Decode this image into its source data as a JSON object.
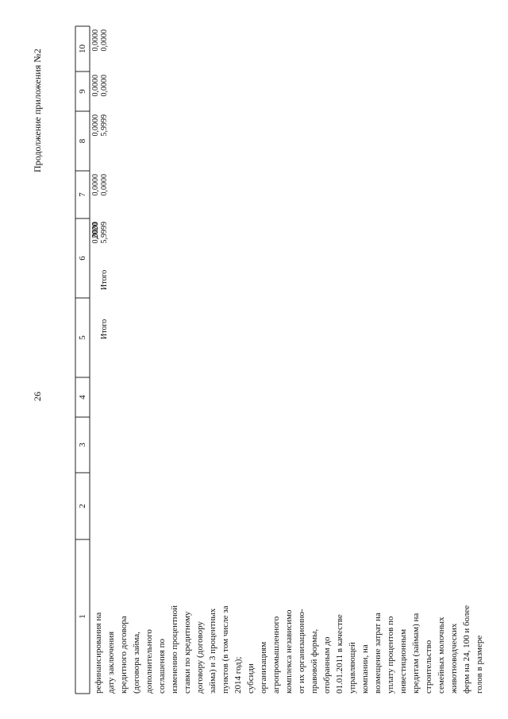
{
  "header": {
    "page_number": "26",
    "appendix_title": "Продолжение приложения №2"
  },
  "table": {
    "col_numbers": [
      "1",
      "2",
      "3",
      "4",
      "5",
      "6",
      "7",
      "8",
      "9",
      "10"
    ],
    "col5": "Итого",
    "col6_year": "2020",
    "col6_total_label": "Итого",
    "col6_values": [
      "0,0000",
      "5,9999"
    ],
    "col7_values": [
      "0,0000",
      "0,0000"
    ],
    "col8_values": [
      "0,0000",
      "5,9999"
    ],
    "col9_values": [
      "0,0000",
      "0,0000"
    ],
    "col10_values": [
      "0,0000",
      "0,0000"
    ],
    "col1_lines": [
      "рефинансирования на",
      "дату заключения",
      "кредитного договора",
      "(договора займа,",
      "дополнительного",
      "соглашения по",
      "изменению процентной",
      "ставки по кредитному",
      "договору (договору",
      "займа) и 3 процентных",
      "пунктов (в том числе за",
      "2014 год);",
      "субсиди",
      "организациям",
      "агропромышленного",
      "комплекса независимо",
      "от их организационно-",
      "правовой формы,",
      "отобранным до",
      "01.01.2011 в качестве",
      "управляющей",
      "компании, на",
      "возмещение затрат на",
      "уплату процентов по",
      "инвестиционным",
      "кредитам (займам) на",
      "строительство",
      "семейных молочных",
      "животноводческих",
      "ферм на 24, 100 и более",
      "голов в размере"
    ]
  }
}
